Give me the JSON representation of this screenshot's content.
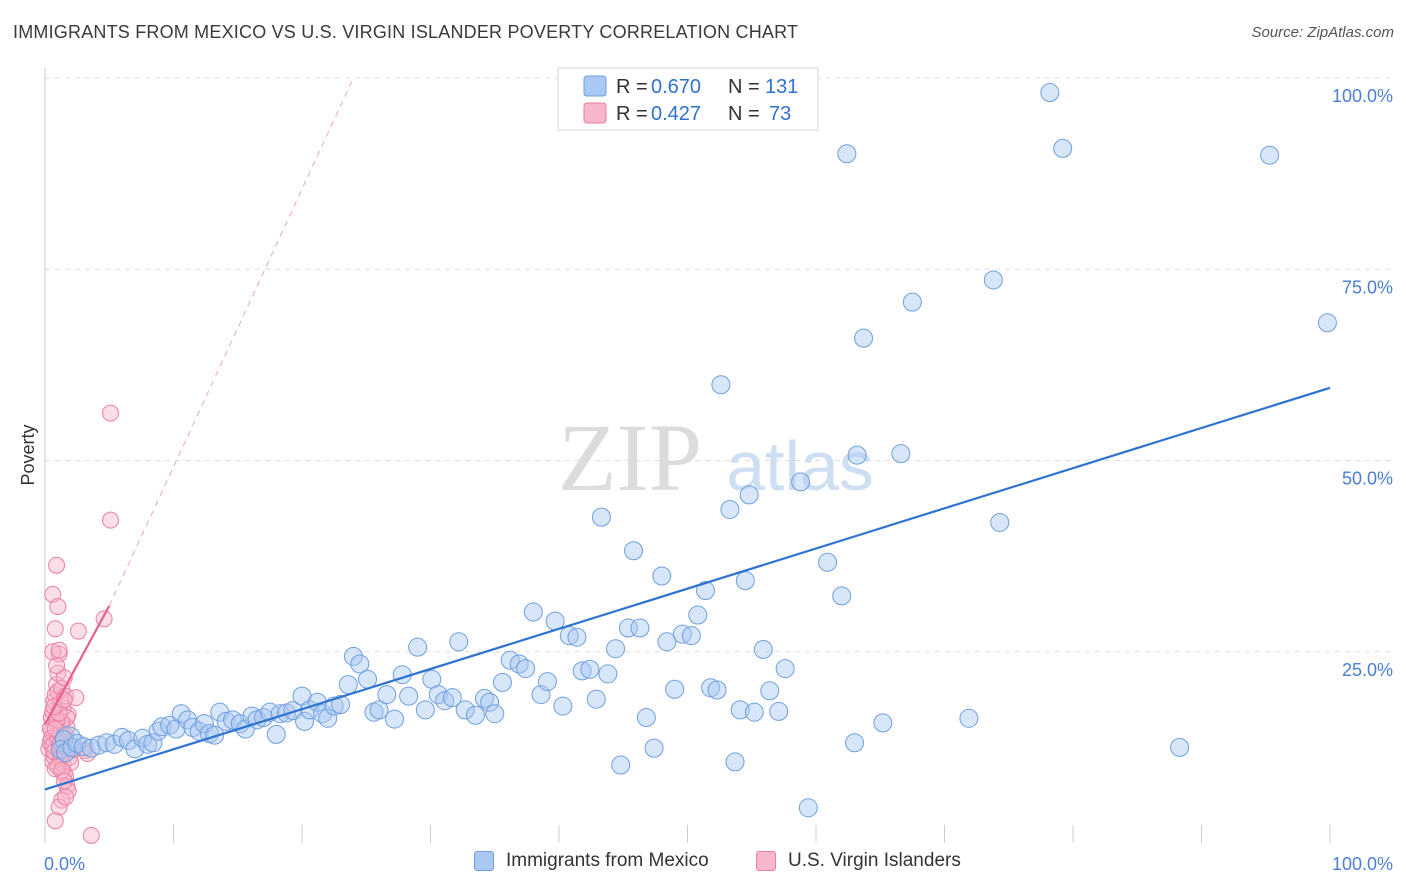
{
  "title": "IMMIGRANTS FROM MEXICO VS U.S. VIRGIN ISLANDER POVERTY CORRELATION CHART",
  "source": "Source: ZipAtlas.com",
  "watermark": {
    "zip": "ZIP",
    "atlas": "atlas"
  },
  "colors": {
    "blue_fill": "#a9c8f2",
    "blue_stroke": "#6f9fe0",
    "blue_line": "#2f73d0",
    "pink_fill": "#f7b6c9",
    "pink_stroke": "#ec7fa1",
    "pink_line": "#e8608c",
    "tick_text": "#4a7fd4",
    "grid": "#dddddd"
  },
  "legend": {
    "rows": [
      {
        "r_label": "R = ",
        "r_value": "0.670",
        "n_label": "N = ",
        "n_value": "131"
      },
      {
        "r_label": "R = ",
        "r_value": "0.427",
        "n_label": "N = ",
        "n_value": "73"
      }
    ]
  },
  "bottom_legend": {
    "series1": "Immigrants from Mexico",
    "series2": "U.S. Virgin Islanders"
  },
  "chart_data": {
    "type": "scatter",
    "title": "IMMIGRANTS FROM MEXICO VS U.S. VIRGIN ISLANDER POVERTY CORRELATION CHART",
    "xlabel": "",
    "ylabel": "Poverty",
    "xlim": [
      0,
      100
    ],
    "ylim": [
      0,
      100
    ],
    "x_tick_labels": {
      "left": "0.0%",
      "right": "100.0%"
    },
    "y_ticks": [
      {
        "value": 25,
        "label": "25.0%"
      },
      {
        "value": 50,
        "label": "50.0%"
      },
      {
        "value": 75,
        "label": "75.0%"
      },
      {
        "value": 100,
        "label": "100.0%"
      }
    ],
    "series": [
      {
        "name": "Immigrants from Mexico",
        "color": "#a9c8f2",
        "R": 0.67,
        "N": 131,
        "trend": {
          "x0": 0,
          "y0": 7.0,
          "x1": 100,
          "y1": 59.5
        },
        "points": [
          [
            1.5,
            13.5
          ],
          [
            1.2,
            12.2
          ],
          [
            1.6,
            11.8
          ],
          [
            2.1,
            12.5
          ],
          [
            2.5,
            13.0
          ],
          [
            3.0,
            12.6
          ],
          [
            3.6,
            12.4
          ],
          [
            4.2,
            12.8
          ],
          [
            4.8,
            13.1
          ],
          [
            5.4,
            12.9
          ],
          [
            6.0,
            13.8
          ],
          [
            6.5,
            13.4
          ],
          [
            7.0,
            12.3
          ],
          [
            7.6,
            13.7
          ],
          [
            8.0,
            12.9
          ],
          [
            8.4,
            13.1
          ],
          [
            8.8,
            14.6
          ],
          [
            9.1,
            15.2
          ],
          [
            9.7,
            15.4
          ],
          [
            10.2,
            14.9
          ],
          [
            10.6,
            16.9
          ],
          [
            11.1,
            16.1
          ],
          [
            11.5,
            15.1
          ],
          [
            12.0,
            14.6
          ],
          [
            12.4,
            15.6
          ],
          [
            12.8,
            14.3
          ],
          [
            13.2,
            14.1
          ],
          [
            13.6,
            17.1
          ],
          [
            14.1,
            15.9
          ],
          [
            14.6,
            16.1
          ],
          [
            15.2,
            15.6
          ],
          [
            15.6,
            14.9
          ],
          [
            16.1,
            16.6
          ],
          [
            16.5,
            16.1
          ],
          [
            17.0,
            16.4
          ],
          [
            17.5,
            17.1
          ],
          [
            18.0,
            14.2
          ],
          [
            18.3,
            16.9
          ],
          [
            18.8,
            17.0
          ],
          [
            19.3,
            17.3
          ],
          [
            20.0,
            19.2
          ],
          [
            20.2,
            15.9
          ],
          [
            20.6,
            17.4
          ],
          [
            21.2,
            18.4
          ],
          [
            21.6,
            16.9
          ],
          [
            22.0,
            16.3
          ],
          [
            22.5,
            17.9
          ],
          [
            23.0,
            18.1
          ],
          [
            23.6,
            20.7
          ],
          [
            24.0,
            24.4
          ],
          [
            24.5,
            23.4
          ],
          [
            25.1,
            21.4
          ],
          [
            25.6,
            17.1
          ],
          [
            26.0,
            17.4
          ],
          [
            26.6,
            19.4
          ],
          [
            27.2,
            16.2
          ],
          [
            27.8,
            22.0
          ],
          [
            28.3,
            19.2
          ],
          [
            29.0,
            25.6
          ],
          [
            29.6,
            17.4
          ],
          [
            30.1,
            21.4
          ],
          [
            30.6,
            19.4
          ],
          [
            31.1,
            18.6
          ],
          [
            31.7,
            19.0
          ],
          [
            32.2,
            26.3
          ],
          [
            32.7,
            17.4
          ],
          [
            33.5,
            16.7
          ],
          [
            34.2,
            18.9
          ],
          [
            34.6,
            18.4
          ],
          [
            35.0,
            16.9
          ],
          [
            35.6,
            21.0
          ],
          [
            36.2,
            23.9
          ],
          [
            36.9,
            23.4
          ],
          [
            37.4,
            22.8
          ],
          [
            38.0,
            30.2
          ],
          [
            38.6,
            19.4
          ],
          [
            39.1,
            21.1
          ],
          [
            39.7,
            29.0
          ],
          [
            40.3,
            17.9
          ],
          [
            40.8,
            27.1
          ],
          [
            41.4,
            26.9
          ],
          [
            41.8,
            22.5
          ],
          [
            42.4,
            22.7
          ],
          [
            42.9,
            18.8
          ],
          [
            43.3,
            42.6
          ],
          [
            43.8,
            22.1
          ],
          [
            44.4,
            25.4
          ],
          [
            44.8,
            10.2
          ],
          [
            45.4,
            28.1
          ],
          [
            45.8,
            38.2
          ],
          [
            46.3,
            28.1
          ],
          [
            46.8,
            16.4
          ],
          [
            47.4,
            12.4
          ],
          [
            48.0,
            34.9
          ],
          [
            48.4,
            26.3
          ],
          [
            49.0,
            20.1
          ],
          [
            49.6,
            27.3
          ],
          [
            50.3,
            27.1
          ],
          [
            50.8,
            29.8
          ],
          [
            51.4,
            33.0
          ],
          [
            51.8,
            20.3
          ],
          [
            52.3,
            20.0
          ],
          [
            52.6,
            59.9
          ],
          [
            53.3,
            43.6
          ],
          [
            53.7,
            10.6
          ],
          [
            54.1,
            17.4
          ],
          [
            54.5,
            34.3
          ],
          [
            54.8,
            45.5
          ],
          [
            55.2,
            17.1
          ],
          [
            55.9,
            25.3
          ],
          [
            56.4,
            19.9
          ],
          [
            57.1,
            17.2
          ],
          [
            57.6,
            22.8
          ],
          [
            58.8,
            47.2
          ],
          [
            59.4,
            4.6
          ],
          [
            60.9,
            36.7
          ],
          [
            62.0,
            32.3
          ],
          [
            62.4,
            90.1
          ],
          [
            63.0,
            13.1
          ],
          [
            63.2,
            50.7
          ],
          [
            63.7,
            66.0
          ],
          [
            65.2,
            15.7
          ],
          [
            66.6,
            50.9
          ],
          [
            67.5,
            70.7
          ],
          [
            71.9,
            16.3
          ],
          [
            73.8,
            73.6
          ],
          [
            74.3,
            41.9
          ],
          [
            78.2,
            98.1
          ],
          [
            79.2,
            90.8
          ],
          [
            88.3,
            12.5
          ],
          [
            95.3,
            89.9
          ],
          [
            99.8,
            68.0
          ]
        ]
      },
      {
        "name": "U.S. Virgin Islanders",
        "color": "#f7b6c9",
        "R": 0.427,
        "N": 73,
        "trend": {
          "x0": 0,
          "y0": 15.5,
          "x1": 5.0,
          "y1": 31.0
        },
        "trend_extension": {
          "x0": 5.0,
          "y0": 31.0,
          "x1": 24.0,
          "y1": 100.0
        },
        "points": [
          [
            0.3,
            12.3
          ],
          [
            0.4,
            13.1
          ],
          [
            0.5,
            14.6
          ],
          [
            0.6,
            10.7
          ],
          [
            0.7,
            11.3
          ],
          [
            0.8,
            9.7
          ],
          [
            0.9,
            15.6
          ],
          [
            0.5,
            16.4
          ],
          [
            0.6,
            17.2
          ],
          [
            0.7,
            18.6
          ],
          [
            0.8,
            19.4
          ],
          [
            0.9,
            20.7
          ],
          [
            1.0,
            22.2
          ],
          [
            1.1,
            24.7
          ],
          [
            0.6,
            25.0
          ],
          [
            0.8,
            28.0
          ],
          [
            0.6,
            32.5
          ],
          [
            0.9,
            36.3
          ],
          [
            1.0,
            30.9
          ],
          [
            1.2,
            12.4
          ],
          [
            1.3,
            11.5
          ],
          [
            1.4,
            10.3
          ],
          [
            1.5,
            9.2
          ],
          [
            1.6,
            8.7
          ],
          [
            1.7,
            7.4
          ],
          [
            1.8,
            6.8
          ],
          [
            1.3,
            5.6
          ],
          [
            1.1,
            4.7
          ],
          [
            0.8,
            2.9
          ],
          [
            1.5,
            13.4
          ],
          [
            1.6,
            14.1
          ],
          [
            1.7,
            15.2
          ],
          [
            1.8,
            16.8
          ],
          [
            1.4,
            17.6
          ],
          [
            1.2,
            18.3
          ],
          [
            1.0,
            19.8
          ],
          [
            1.3,
            20.2
          ],
          [
            1.5,
            21.6
          ],
          [
            0.9,
            23.2
          ],
          [
            1.1,
            25.2
          ],
          [
            1.4,
            12.0
          ],
          [
            1.9,
            11.2
          ],
          [
            2.0,
            10.5
          ],
          [
            1.6,
            19.2
          ],
          [
            1.7,
            16.4
          ],
          [
            0.4,
            15.0
          ],
          [
            0.5,
            13.7
          ],
          [
            0.6,
            12.8
          ],
          [
            0.7,
            11.9
          ],
          [
            2.2,
            12.2
          ],
          [
            2.4,
            19.0
          ],
          [
            2.6,
            27.7
          ],
          [
            3.1,
            12.1
          ],
          [
            3.3,
            11.7
          ],
          [
            3.6,
            1.0
          ],
          [
            4.6,
            29.3
          ],
          [
            5.1,
            42.2
          ],
          [
            5.1,
            56.2
          ],
          [
            1.0,
            13.6
          ],
          [
            1.2,
            14.4
          ],
          [
            1.3,
            15.8
          ],
          [
            0.9,
            16.1
          ],
          [
            1.1,
            17.0
          ],
          [
            1.2,
            11.1
          ],
          [
            1.0,
            10.0
          ],
          [
            1.3,
            9.5
          ],
          [
            1.5,
            8.1
          ],
          [
            1.4,
            12.7
          ],
          [
            1.2,
            13.0
          ],
          [
            0.8,
            14.9
          ],
          [
            0.7,
            17.8
          ],
          [
            1.5,
            18.7
          ],
          [
            1.6,
            6.0
          ]
        ]
      }
    ]
  }
}
